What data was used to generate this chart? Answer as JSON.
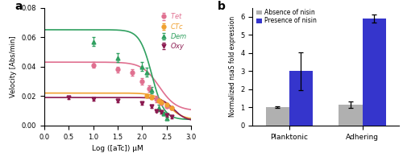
{
  "panel_a": {
    "title": "a",
    "xlabel": "Log ([aTc]) μM",
    "ylabel": "Velocity [Abs/min]",
    "xlim": [
      0,
      3
    ],
    "ylim": [
      0,
      0.08
    ],
    "yticks": [
      0.0,
      0.02,
      0.04,
      0.06,
      0.08
    ],
    "curves": [
      {
        "name": "Tet",
        "color": "#e07090",
        "marker": "o",
        "vmax": 0.043,
        "vmin": 0.01,
        "ic50_log": 2.35,
        "slope": 2.5,
        "data_x": [
          1.0,
          1.5,
          1.8,
          2.0,
          2.15,
          2.3,
          2.4,
          2.5,
          2.6
        ],
        "data_y": [
          0.041,
          0.038,
          0.036,
          0.03,
          0.025,
          0.018,
          0.015,
          0.013,
          0.012
        ],
        "err_y": [
          0.002,
          0.002,
          0.002,
          0.002,
          0.002,
          0.002,
          0.001,
          0.001,
          0.001
        ]
      },
      {
        "name": "CTc",
        "color": "#f0a030",
        "marker": "o",
        "vmax": 0.022,
        "vmin": 0.004,
        "ic50_log": 2.55,
        "slope": 3.0,
        "data_x": [
          2.1,
          2.2,
          2.35,
          2.4,
          2.5,
          2.6
        ],
        "data_y": [
          0.02,
          0.019,
          0.017,
          0.016,
          0.014,
          0.012
        ],
        "err_y": [
          0.001,
          0.001,
          0.001,
          0.001,
          0.001,
          0.001
        ]
      },
      {
        "name": "Dem",
        "color": "#30a060",
        "marker": "^",
        "vmax": 0.065,
        "vmin": 0.004,
        "ic50_log": 2.2,
        "slope": 3.5,
        "data_x": [
          1.0,
          1.5,
          2.0,
          2.1,
          2.2,
          2.35,
          2.45,
          2.5
        ],
        "data_y": [
          0.057,
          0.046,
          0.04,
          0.036,
          0.024,
          0.012,
          0.008,
          0.005
        ],
        "err_y": [
          0.003,
          0.003,
          0.003,
          0.003,
          0.002,
          0.002,
          0.001,
          0.001
        ]
      },
      {
        "name": "Oxy",
        "color": "#8b1a50",
        "marker": "v",
        "vmax": 0.019,
        "vmin": 0.003,
        "ic50_log": 2.65,
        "slope": 3.5,
        "data_x": [
          0.5,
          1.0,
          1.5,
          2.0,
          2.2,
          2.3,
          2.4,
          2.5,
          2.6
        ],
        "data_y": [
          0.019,
          0.018,
          0.017,
          0.015,
          0.013,
          0.01,
          0.009,
          0.007,
          0.006
        ],
        "err_y": [
          0.001,
          0.001,
          0.001,
          0.001,
          0.001,
          0.001,
          0.001,
          0.001,
          0.001
        ]
      }
    ]
  },
  "panel_b": {
    "title": "b",
    "ylabel": "Normalized nsaS fold expression",
    "ylim": [
      0,
      6.5
    ],
    "yticks": [
      0.0,
      1.0,
      2.0,
      3.0,
      4.0,
      5.0,
      6.0
    ],
    "categories": [
      "Planktonic",
      "Adhering"
    ],
    "bars": [
      {
        "label": "Absence of nisin",
        "color": "#b0b0b0",
        "values": [
          1.0,
          1.15
        ],
        "errors": [
          0.05,
          0.18
        ]
      },
      {
        "label": "Presence of nisin",
        "color": "#3535cc",
        "values": [
          3.0,
          5.9
        ],
        "errors": [
          1.05,
          0.22
        ]
      }
    ],
    "bar_width": 0.32
  }
}
